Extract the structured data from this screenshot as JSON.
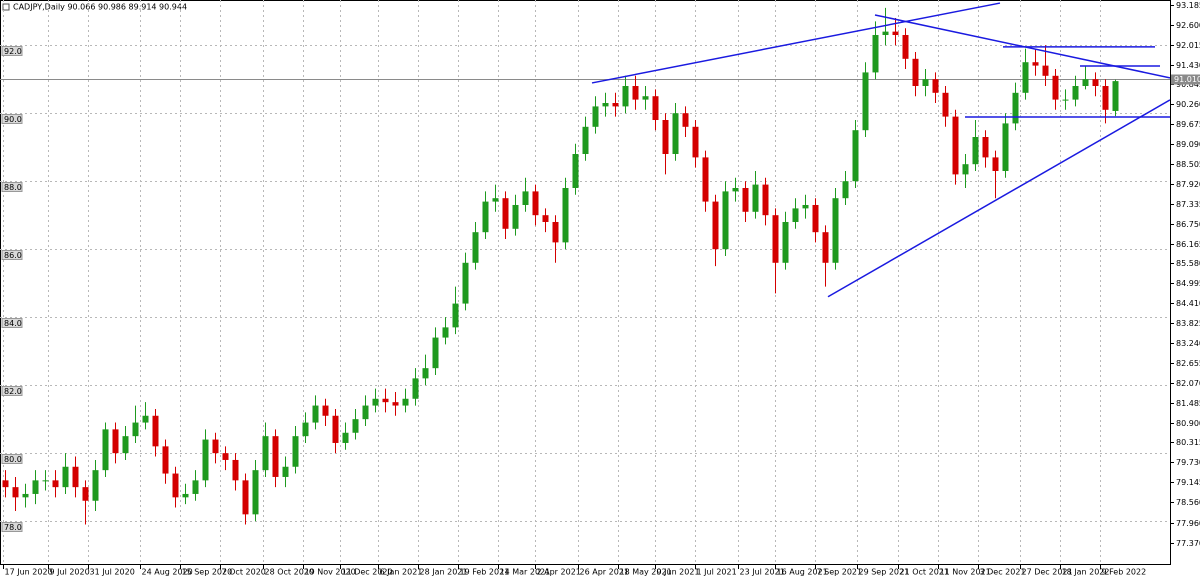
{
  "chart_data": {
    "type": "candlestick",
    "title": "CADJPY,Daily  90.066 90.986 89.914 90.944",
    "up_color": "#1f9a1f",
    "down_color": "#d40000",
    "trendline_color": "#1a1ae0",
    "grid": true,
    "xlim": [
      0,
      468
    ],
    "ylim": [
      76.71,
      93.33
    ],
    "y2lim": [
      76.71,
      93.33
    ],
    "x": [
      2,
      6,
      10,
      14,
      18,
      22,
      26,
      30,
      34,
      38,
      42,
      46,
      50,
      54,
      58,
      62,
      66,
      70,
      74,
      78,
      82,
      86,
      90,
      94,
      98,
      102,
      106,
      110,
      114,
      118,
      122,
      126,
      130,
      134,
      138,
      142,
      146,
      150,
      154,
      158,
      162,
      166,
      170,
      174,
      178,
      182,
      186,
      190,
      194,
      198,
      202,
      206,
      210,
      214,
      218,
      222,
      226,
      230,
      234,
      238,
      242,
      246,
      250,
      254,
      258,
      262,
      266,
      270,
      274,
      278,
      282,
      286,
      290,
      294,
      298,
      302,
      306,
      310,
      314,
      318,
      322,
      326,
      330,
      334,
      338,
      342,
      346,
      350,
      354,
      358,
      362,
      366,
      370,
      374,
      378,
      382,
      386,
      390,
      394,
      398,
      402,
      406,
      410,
      414,
      418,
      422,
      426,
      430,
      434,
      438,
      442,
      446
    ],
    "open": [
      79.2,
      79.0,
      78.7,
      78.8,
      79.2,
      79.2,
      79.0,
      79.6,
      79.0,
      78.6,
      79.5,
      80.7,
      80.0,
      80.5,
      80.9,
      81.1,
      80.2,
      79.4,
      78.7,
      78.8,
      79.2,
      80.4,
      80.0,
      79.8,
      79.2,
      78.2,
      79.5,
      80.5,
      79.3,
      79.6,
      80.5,
      80.9,
      81.4,
      81.1,
      80.3,
      80.6,
      81.0,
      81.4,
      81.6,
      81.5,
      81.4,
      81.6,
      82.2,
      82.5,
      83.4,
      83.7,
      84.4,
      85.6,
      86.5,
      87.4,
      87.5,
      86.6,
      87.3,
      87.7,
      87.0,
      86.8,
      86.2,
      87.8,
      88.8,
      89.6,
      90.2,
      90.3,
      90.2,
      90.8,
      90.4,
      90.5,
      89.8,
      88.8,
      90.0,
      89.6,
      88.7,
      87.4,
      86.0,
      87.7,
      87.8,
      87.1,
      87.9,
      87.0,
      85.6,
      86.8,
      87.2,
      87.3,
      86.5,
      85.6,
      87.5,
      88.0,
      89.5,
      91.2,
      92.3,
      92.4,
      92.3,
      91.6,
      90.8,
      91.0,
      90.6,
      89.9,
      88.2,
      88.5,
      89.3,
      88.7,
      88.3,
      89.7,
      90.6,
      91.5,
      91.4,
      91.1,
      90.4,
      90.4,
      90.8,
      91.0,
      90.8,
      90.066
    ],
    "high": [
      79.5,
      79.3,
      79.1,
      79.5,
      79.5,
      79.5,
      80.0,
      79.9,
      79.2,
      79.8,
      80.9,
      80.9,
      80.8,
      81.4,
      81.5,
      81.3,
      80.4,
      79.6,
      79.1,
      79.5,
      80.7,
      80.6,
      80.2,
      80.0,
      79.4,
      79.8,
      80.9,
      80.7,
      79.9,
      80.8,
      81.2,
      81.7,
      81.6,
      81.3,
      80.9,
      81.3,
      81.7,
      81.9,
      81.9,
      81.8,
      81.9,
      82.5,
      82.9,
      83.7,
      84.0,
      84.9,
      85.9,
      86.8,
      87.7,
      87.9,
      87.7,
      87.6,
      88.1,
      87.9,
      87.2,
      87.0,
      88.1,
      89.1,
      89.9,
      90.5,
      90.6,
      90.6,
      91.1,
      91.1,
      90.8,
      90.7,
      90.0,
      90.3,
      90.2,
      89.8,
      88.9,
      87.6,
      88.0,
      88.1,
      88.0,
      88.3,
      88.1,
      87.2,
      87.1,
      87.5,
      87.6,
      87.5,
      86.7,
      87.8,
      88.3,
      89.8,
      91.5,
      92.7,
      93.1,
      92.8,
      92.5,
      91.8,
      91.3,
      91.2,
      90.8,
      90.1,
      88.8,
      89.8,
      89.5,
      88.9,
      90.0,
      90.9,
      91.9,
      91.9,
      92.0,
      91.3,
      90.7,
      91.1,
      91.4,
      91.2,
      91.0,
      90.986
    ],
    "low": [
      78.7,
      78.3,
      78.4,
      78.5,
      78.9,
      78.7,
      78.8,
      78.7,
      77.9,
      78.3,
      79.3,
      79.7,
      79.8,
      80.3,
      80.7,
      79.9,
      79.1,
      78.4,
      78.5,
      78.6,
      79.0,
      79.7,
      79.5,
      78.9,
      77.9,
      78.0,
      79.3,
      79.0,
      79.0,
      79.4,
      80.3,
      80.7,
      80.8,
      80.0,
      80.1,
      80.4,
      80.8,
      81.2,
      81.2,
      81.1,
      81.2,
      81.4,
      82.0,
      82.3,
      83.2,
      83.5,
      84.2,
      85.4,
      86.3,
      87.1,
      86.3,
      86.4,
      87.1,
      86.7,
      86.5,
      85.6,
      86.0,
      87.6,
      88.6,
      89.4,
      89.9,
      89.9,
      90.0,
      90.1,
      90.1,
      89.5,
      88.2,
      88.6,
      89.3,
      88.4,
      87.1,
      85.5,
      85.8,
      87.4,
      86.8,
      86.9,
      86.7,
      84.7,
      85.4,
      86.6,
      86.9,
      86.2,
      84.9,
      85.4,
      87.3,
      87.8,
      89.3,
      91.0,
      92.0,
      92.0,
      91.3,
      90.5,
      90.5,
      90.3,
      89.6,
      87.9,
      87.8,
      88.3,
      88.4,
      87.5,
      88.1,
      89.5,
      90.4,
      91.1,
      90.8,
      90.1,
      90.1,
      90.2,
      90.7,
      90.5,
      89.7,
      89.914
    ],
    "close": [
      79.0,
      78.7,
      78.8,
      79.2,
      79.2,
      79.0,
      79.6,
      79.0,
      78.6,
      79.5,
      80.7,
      80.0,
      80.5,
      80.9,
      81.1,
      80.2,
      79.4,
      78.7,
      78.8,
      79.2,
      80.4,
      80.0,
      79.8,
      79.2,
      78.2,
      79.5,
      80.5,
      79.3,
      79.6,
      80.5,
      80.9,
      81.4,
      81.1,
      80.3,
      80.6,
      81.0,
      81.4,
      81.6,
      81.5,
      81.4,
      81.6,
      82.2,
      82.5,
      83.4,
      83.7,
      84.4,
      85.6,
      86.5,
      87.4,
      87.5,
      86.6,
      87.3,
      87.7,
      87.0,
      86.8,
      86.2,
      87.8,
      88.8,
      89.6,
      90.2,
      90.3,
      90.2,
      90.8,
      90.4,
      90.5,
      89.8,
      88.8,
      90.0,
      89.6,
      88.7,
      87.4,
      86.0,
      87.7,
      87.8,
      87.1,
      87.9,
      87.0,
      85.6,
      86.8,
      87.2,
      87.3,
      86.5,
      85.6,
      87.5,
      88.0,
      89.5,
      91.2,
      92.3,
      92.4,
      92.3,
      91.6,
      90.8,
      91.0,
      90.6,
      89.9,
      88.2,
      88.5,
      89.3,
      88.7,
      88.3,
      89.7,
      90.6,
      91.5,
      91.4,
      91.1,
      90.4,
      90.4,
      90.8,
      91.0,
      90.8,
      90.1,
      90.944
    ],
    "xticks": [
      {
        "value": 1,
        "label": "17 Jun 2020"
      },
      {
        "value": 19,
        "label": "9 Jul 2020"
      },
      {
        "value": 35,
        "label": "31 Jul 2020"
      },
      {
        "value": 56,
        "label": "24 Aug 2020"
      },
      {
        "value": 72,
        "label": "15 Sep 2020"
      },
      {
        "value": 88,
        "label": "7 Oct 2020"
      },
      {
        "value": 105,
        "label": "28 Oct 2020"
      },
      {
        "value": 121,
        "label": "19 Nov 2020"
      },
      {
        "value": 136,
        "label": "11 Dec 2020"
      },
      {
        "value": 151,
        "label": "6 Jan 2021"
      },
      {
        "value": 167,
        "label": "28 Jan 2021"
      },
      {
        "value": 183,
        "label": "19 Feb 2021"
      },
      {
        "value": 199,
        "label": "14 Mar 2021"
      },
      {
        "value": 214,
        "label": "2 Apr 2021"
      },
      {
        "value": 231,
        "label": "26 Apr 2021"
      },
      {
        "value": 247,
        "label": "18 May 2021"
      },
      {
        "value": 262,
        "label": "9 Jun 2021"
      },
      {
        "value": 278,
        "label": "1 Jul 2021"
      },
      {
        "value": 295,
        "label": "23 Jul 2021"
      },
      {
        "value": 310,
        "label": "16 Aug 2021"
      },
      {
        "value": 326,
        "label": "7 Sep 2021"
      },
      {
        "value": 343,
        "label": "29 Sep 2021"
      },
      {
        "value": 359,
        "label": "21 Oct 2021"
      },
      {
        "value": 375,
        "label": "11 Nov 2021"
      },
      {
        "value": 391,
        "label": "3 Dec 2021"
      },
      {
        "value": 408,
        "label": "27 Dec 2021"
      },
      {
        "value": 424,
        "label": "18 Jan 2022"
      },
      {
        "value": 440,
        "label": "9 Feb 2022"
      }
    ],
    "yticks": [
      {
        "value": 92,
        "label": "92.0"
      },
      {
        "value": 90,
        "label": "90.0"
      },
      {
        "value": 88,
        "label": "88.0"
      },
      {
        "value": 86,
        "label": "86.0"
      },
      {
        "value": 84,
        "label": "84.0"
      },
      {
        "value": 82,
        "label": "82.0"
      },
      {
        "value": 80,
        "label": "80.0"
      },
      {
        "value": 78,
        "label": "78.0"
      }
    ],
    "y2ticks": [
      93.185,
      {
        "value": 92.6,
        "label": "92.600"
      },
      92.015,
      {
        "value": 91.43,
        "label": "91.430"
      },
      90.845,
      {
        "value": 90.26,
        "label": "90.260"
      },
      89.675,
      {
        "value": 89.09,
        "label": "89.090"
      },
      88.505,
      {
        "value": 87.92,
        "label": "87.920"
      },
      87.335,
      {
        "value": 86.75,
        "label": "86.750"
      },
      86.165,
      {
        "value": 85.58,
        "label": "85.580"
      },
      84.995,
      {
        "value": 84.41,
        "label": "84.410"
      },
      83.825,
      {
        "value": 83.24,
        "label": "83.240"
      },
      82.655,
      {
        "value": 82.07,
        "label": "82.070"
      },
      81.485,
      {
        "value": 80.9,
        "label": "80.900"
      },
      80.315,
      {
        "value": 79.73,
        "label": "79.730"
      },
      79.145,
      {
        "value": 78.56,
        "label": "78.560"
      },
      {
        "value": 77.96,
        "label": "77.960"
      },
      {
        "value": 77.37,
        "label": "77.370"
      }
    ],
    "last_price": {
      "value": 91.01,
      "label": "91.010"
    },
    "trendlines": [
      {
        "x1": 236.8,
        "y1": 90.89,
        "x2": 400,
        "y2": 93.24
      },
      {
        "x1": 350,
        "y1": 92.89,
        "x2": 468,
        "y2": 91.04
      },
      {
        "x1": 331.2,
        "y1": 84.6,
        "x2": 468,
        "y2": 90.39
      },
      {
        "x1": 386,
        "y1": 89.89,
        "x2": 468,
        "y2": 89.89
      },
      {
        "x1": 401.2,
        "y1": 91.95,
        "x2": 462,
        "y2": 91.95
      },
      {
        "x1": 432,
        "y1": 91.39,
        "x2": 464,
        "y2": 91.39
      }
    ]
  }
}
